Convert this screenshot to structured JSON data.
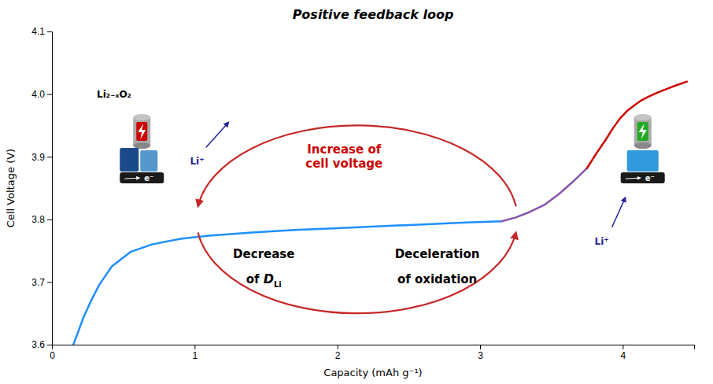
{
  "chart_data": {
    "type": "line",
    "title": "Positive feedback loop",
    "x_label": "Capacity (mAh g⁻¹)",
    "y_label": "Cell Voltage (V)",
    "xlim": [
      0,
      4.5
    ],
    "ylim": [
      3.6,
      4.1
    ],
    "xticks": [
      0,
      1,
      2,
      3,
      4
    ],
    "yticks": [
      3.6,
      3.7,
      3.8,
      3.9,
      {
        "value": 4.0,
        "label": "4.0"
      },
      4.1
    ],
    "series": [
      {
        "color": "#1e8fff",
        "x": [
          0.15,
          0.18,
          0.22,
          0.27,
          0.33,
          0.42,
          0.55,
          0.7,
          0.9,
          1.1,
          1.4,
          1.7,
          2.0,
          2.3,
          2.6,
          2.9,
          3.15
        ],
        "values": [
          3.6,
          3.618,
          3.643,
          3.668,
          3.695,
          3.725,
          3.748,
          3.76,
          3.769,
          3.774,
          3.779,
          3.783,
          3.786,
          3.789,
          3.792,
          3.795,
          3.797
        ]
      },
      {
        "color": "#8855aa",
        "x": [
          3.15,
          3.25,
          3.35,
          3.45,
          3.55,
          3.65,
          3.75
        ],
        "values": [
          3.797,
          3.803,
          3.812,
          3.823,
          3.84,
          3.86,
          3.882
        ]
      },
      {
        "color": "#cc0000",
        "x": [
          3.75,
          3.82,
          3.88,
          3.93,
          3.98,
          4.03,
          4.08,
          4.13,
          4.18,
          4.25,
          4.35,
          4.45
        ],
        "values": [
          3.882,
          3.907,
          3.927,
          3.945,
          3.961,
          3.973,
          3.982,
          3.99,
          3.996,
          4.003,
          4.012,
          4.02
        ]
      }
    ],
    "annotations": [
      "Increase of\ncell voltage",
      "Decrease",
      "of",
      "D",
      "Li",
      "Deceleration",
      "of oxidation",
      "Li₂₋ₓO₂",
      "Li⁺",
      "Li⁺",
      "e⁻",
      "e⁻"
    ]
  }
}
